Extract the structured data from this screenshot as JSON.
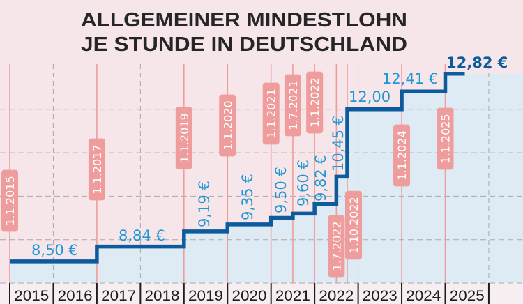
{
  "chart_data": {
    "type": "line",
    "step": true,
    "title": [
      "ALLGEMEINER MINDESTLOHN",
      "JE STUNDE IN DEUTSCHLAND"
    ],
    "xlabel": "",
    "ylabel": "",
    "ylim": [
      8,
      13
    ],
    "grid": true,
    "x_ticks": [
      "2015",
      "2016",
      "2017",
      "2018",
      "2019",
      "2020",
      "2021",
      "2022",
      "2023",
      "2024",
      "2025"
    ],
    "series": [
      {
        "points": [
          {
            "date": "1.1.2015",
            "value": 8.5,
            "label": "8,50 €"
          },
          {
            "date": "1.1.2017",
            "value": 8.84,
            "label": "8,84 €"
          },
          {
            "date": "1.1.2019",
            "value": 9.19,
            "label": "9,19 €"
          },
          {
            "date": "1.1.2020",
            "value": 9.35,
            "label": "9,35 €"
          },
          {
            "date": "1.1.2021",
            "value": 9.5,
            "label": "9,50 €"
          },
          {
            "date": "1.7.2021",
            "value": 9.6,
            "label": "9,60 €"
          },
          {
            "date": "1.1.2022",
            "value": 9.82,
            "label": "9,82 €"
          },
          {
            "date": "1.7.2022",
            "value": 10.45,
            "label": "10,45 €"
          },
          {
            "date": "1.10.2022",
            "value": 12.0,
            "label": "12,00"
          },
          {
            "date": "1.1.2024",
            "value": 12.41,
            "label": "12,41 €"
          },
          {
            "date": "1.1.2025",
            "value": 12.82,
            "label": "12,82 €"
          }
        ]
      }
    ],
    "colors": {
      "line": "#0c5b9c",
      "value_label": "#1b98d5",
      "highlight_label": "#0c5b9c",
      "date_box": "#ef9c9c",
      "area_fill": "#deebf4",
      "background": "#f6e6ea"
    }
  }
}
